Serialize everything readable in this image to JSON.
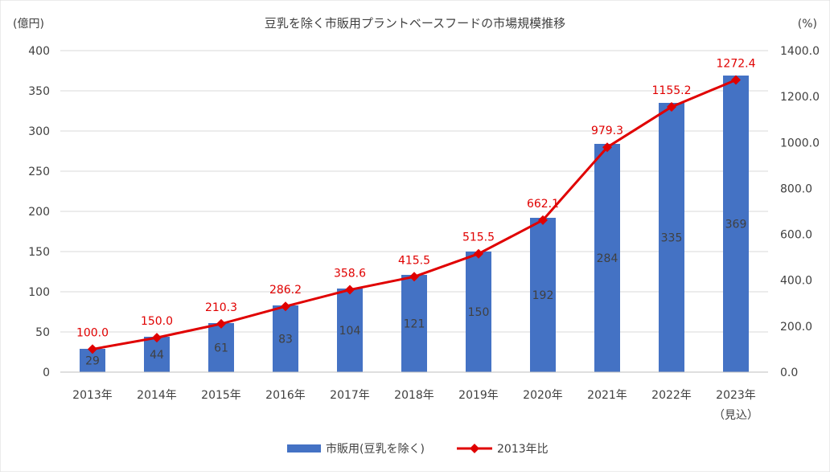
{
  "chart_data": {
    "type": "bar+line",
    "title": "豆乳を除く市販用プラントベースフードの市場規模推移",
    "y_left_unit": "(億円)",
    "y_right_unit": "(%)",
    "categories": [
      "2013年",
      "2014年",
      "2015年",
      "2016年",
      "2017年",
      "2018年",
      "2019年",
      "2020年",
      "2021年",
      "2022年",
      "2023年"
    ],
    "category_note": "（見込）",
    "y_left_ticks": [
      "0",
      "50",
      "100",
      "150",
      "200",
      "250",
      "300",
      "350",
      "400"
    ],
    "y_right_ticks": [
      "0.0",
      "200.0",
      "400.0",
      "600.0",
      "800.0",
      "1000.0",
      "1200.0",
      "1400.0"
    ],
    "ylim_left": [
      0,
      400
    ],
    "ylim_right": [
      0,
      1400
    ],
    "series": [
      {
        "name": "市販用(豆乳を除く)",
        "type": "bar",
        "axis": "left",
        "color": "#4472c4",
        "values": [
          29,
          44,
          61,
          83,
          104,
          121,
          150,
          192,
          284,
          335,
          369
        ]
      },
      {
        "name": "2013年比",
        "type": "line",
        "axis": "right",
        "color": "#e00000",
        "values": [
          100.0,
          150.0,
          210.3,
          286.2,
          358.6,
          415.5,
          515.5,
          662.1,
          979.3,
          1155.2,
          1272.4
        ],
        "labels": [
          "100.0",
          "150.0",
          "210.3",
          "286.2",
          "358.6",
          "415.5",
          "515.5",
          "662.1",
          "979.3",
          "1155.2",
          "1272.4"
        ]
      }
    ],
    "legend": [
      "市販用(豆乳を除く)",
      "2013年比"
    ],
    "legend_position": "bottom",
    "grid": true
  }
}
